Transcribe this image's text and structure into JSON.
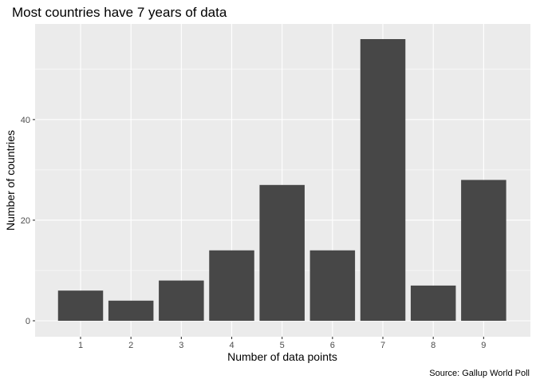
{
  "chart_data": {
    "type": "bar",
    "title": "Most countries have 7 years of data",
    "xlabel": "Number of data points",
    "ylabel": "Number of countries",
    "caption": "Source: Gallup World Poll",
    "categories": [
      "1",
      "2",
      "3",
      "4",
      "5",
      "6",
      "7",
      "8",
      "9"
    ],
    "values": [
      6,
      4,
      8,
      14,
      27,
      14,
      56,
      7,
      28
    ],
    "ylim": [
      0,
      59
    ],
    "yticks": [
      0,
      20,
      40
    ],
    "grid": true,
    "legend": "none",
    "colors": {
      "bar": "#474747",
      "panel": "#ebebeb",
      "grid_major": "#ffffff",
      "text": "#000000",
      "tick_text": "#4d4d4d"
    }
  }
}
